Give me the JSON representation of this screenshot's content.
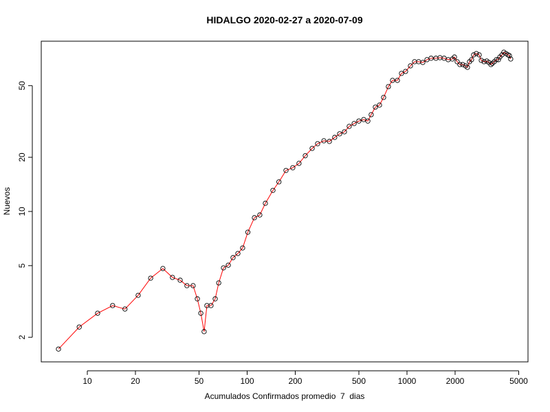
{
  "chart_data": {
    "type": "line",
    "title": "HIDALGO 2020-02-27 a 2020-07-09",
    "x_label": "Acumulados Confirmados promedio  7  dias",
    "y_label": "Nuevos",
    "log_x": true,
    "log_y": true,
    "grid": false,
    "xlim": [
      5.15,
      5716
    ],
    "ylim": [
      1.46,
      88.3
    ],
    "xticks": [
      10,
      20,
      50,
      100,
      200,
      500,
      1000,
      2000,
      5000
    ],
    "yticks": [
      2,
      5,
      10,
      20,
      50
    ],
    "series": [
      {
        "color": "#ff0000",
        "marker_color": "#000000",
        "x": [
          6.6,
          8.9,
          11.6,
          14.4,
          17.2,
          20.8,
          24.9,
          29.7,
          34.1,
          38.1,
          42.0,
          45.9,
          48.8,
          51.3,
          53.8,
          56.0,
          59.4,
          63.1,
          66.4,
          71.1,
          76.2,
          81.6,
          87.5,
          93.7,
          101,
          111,
          120,
          130,
          145,
          158,
          175,
          193,
          211,
          231,
          255,
          276,
          302,
          327,
          353,
          379,
          406,
          435,
          467,
          500,
          536,
          569,
          597,
          634,
          673,
          714,
          765,
          812,
          871,
          924,
          980,
          1051,
          1115,
          1183,
          1256,
          1333,
          1415,
          1517,
          1608,
          1707,
          1811,
          1923,
          1982,
          2061,
          2143,
          2230,
          2322,
          2390,
          2461,
          2535,
          2611,
          2716,
          2829,
          2916,
          3034,
          3155,
          3251,
          3350,
          3420,
          3516,
          3623,
          3733,
          3810,
          3927,
          4036,
          4159,
          4285,
          4375,
          4457
        ],
        "values": [
          1.72,
          2.28,
          2.72,
          3.0,
          2.87,
          3.42,
          4.26,
          4.82,
          4.3,
          4.15,
          3.87,
          3.87,
          3.27,
          2.72,
          2.15,
          3.0,
          3.0,
          3.27,
          4.01,
          4.86,
          5.03,
          5.54,
          5.84,
          6.27,
          7.67,
          9.23,
          9.56,
          11.1,
          13.1,
          14.6,
          16.9,
          17.5,
          18.5,
          20.4,
          22.4,
          23.8,
          24.7,
          24.5,
          25.8,
          27.0,
          27.7,
          29.7,
          30.8,
          31.8,
          32.4,
          31.8,
          34.5,
          38.0,
          39.0,
          43.0,
          49.4,
          53.5,
          53.5,
          58.5,
          60.0,
          64.4,
          67.9,
          67.9,
          67.3,
          69.7,
          71.0,
          71.0,
          71.5,
          71.0,
          69.7,
          70.3,
          72.1,
          67.9,
          65.5,
          65.5,
          64.4,
          63.2,
          67.9,
          69.7,
          74.1,
          75.4,
          74.1,
          69.1,
          67.9,
          68.5,
          67.3,
          65.5,
          66.5,
          67.9,
          69.7,
          69.7,
          72.1,
          74.1,
          76.7,
          75.4,
          74.1,
          73.4,
          70.3
        ]
      }
    ]
  }
}
